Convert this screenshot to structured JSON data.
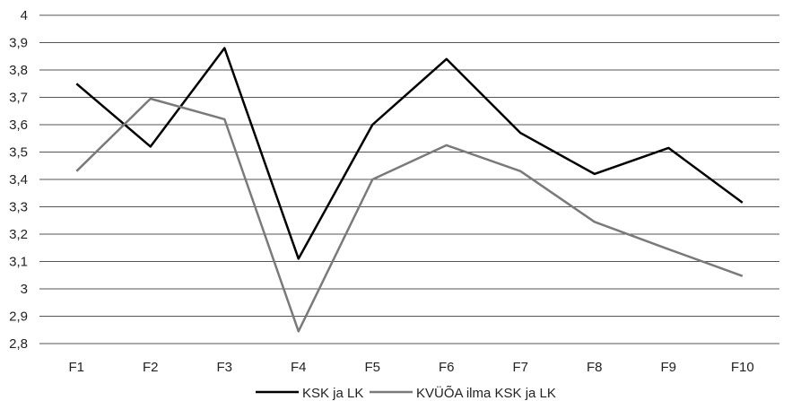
{
  "chart_data": {
    "type": "line",
    "categories": [
      "F1",
      "F2",
      "F3",
      "F4",
      "F5",
      "F6",
      "F7",
      "F8",
      "F9",
      "F10"
    ],
    "y_ticks": [
      "2,8",
      "2,9",
      "3",
      "3,1",
      "3,2",
      "3,3",
      "3,4",
      "3,5",
      "3,6",
      "3,7",
      "3,8",
      "3,9",
      "4"
    ],
    "ylim": [
      2.8,
      4.0
    ],
    "grid": true,
    "legend_position": "bottom",
    "series": [
      {
        "name": "KSK ja LK",
        "color": "#000000",
        "values": [
          3.75,
          3.52,
          3.88,
          3.11,
          3.6,
          3.84,
          3.57,
          3.42,
          3.515,
          3.315
        ]
      },
      {
        "name": "KVÜÕA ilma KSK ja LK",
        "color": "#7a7a7a",
        "values": [
          3.43,
          3.695,
          3.62,
          2.845,
          3.4,
          3.525,
          3.43,
          3.245,
          3.145,
          3.047
        ]
      }
    ]
  }
}
